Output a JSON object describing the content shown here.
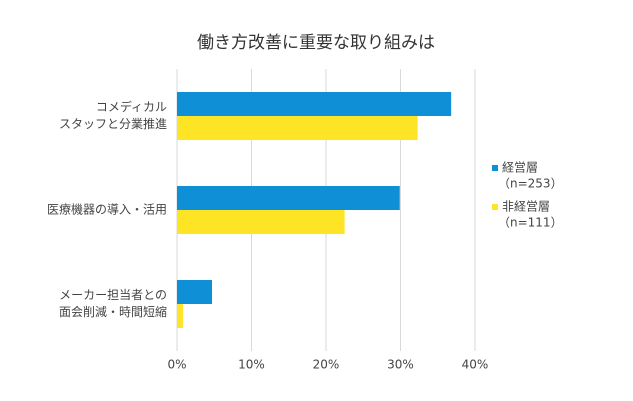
{
  "chart_data": {
    "type": "hbar",
    "title": "働き方改善に重要な取り組みは",
    "categories": [
      [
        "コメディカル",
        "スタッフと分業推進"
      ],
      [
        "医療機器の導入・活用"
      ],
      [
        "メーカー担当者との",
        "面会削減・時間短縮"
      ]
    ],
    "series": [
      {
        "name": [
          "経営層",
          "（n=253）"
        ],
        "color": "#0f8fd6",
        "values": [
          36.8,
          29.9,
          4.7
        ]
      },
      {
        "name": [
          "非経営層",
          "（n=111）"
        ],
        "color": "#fde525",
        "values": [
          32.3,
          22.5,
          0.8
        ]
      }
    ],
    "xlim": [
      0,
      40
    ],
    "xticks": [
      {
        "value": 0,
        "label": "0%"
      },
      {
        "value": 10,
        "label": "10%"
      },
      {
        "value": 20,
        "label": "20%"
      },
      {
        "value": 30,
        "label": "30%"
      },
      {
        "value": 40,
        "label": "40%"
      }
    ],
    "grid": true,
    "legend": "right"
  }
}
